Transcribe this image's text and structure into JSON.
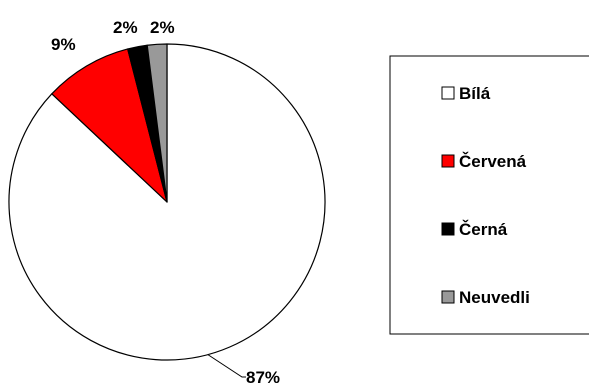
{
  "chart_data": {
    "type": "pie",
    "title": "",
    "slices": [
      {
        "label": "Bílá",
        "value": 87,
        "display": "87%",
        "color": "#ffffff"
      },
      {
        "label": "Červená",
        "value": 9,
        "display": "9%",
        "color": "#ff0000"
      },
      {
        "label": "Černá",
        "value": 2,
        "display": "2%",
        "color": "#000000"
      },
      {
        "label": "Neuvedli",
        "value": 2,
        "display": "2%",
        "color": "#999999"
      }
    ],
    "start": "top, clockwise",
    "legend": {
      "position": "right",
      "items": [
        "Bílá",
        "Červená",
        "Černá",
        "Neuvedli"
      ]
    }
  }
}
